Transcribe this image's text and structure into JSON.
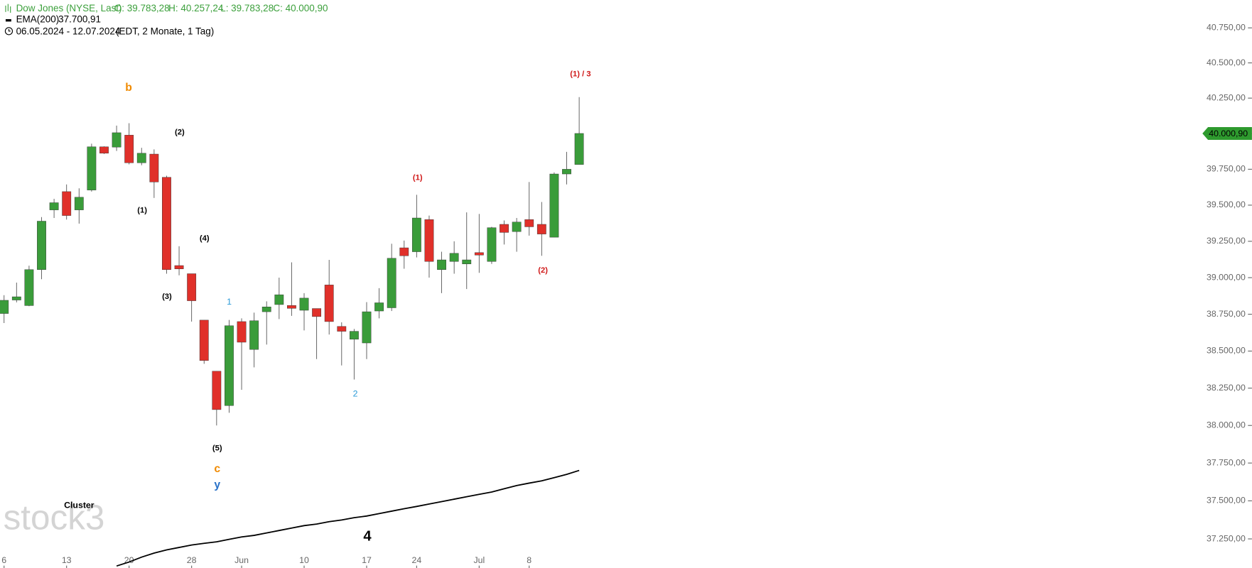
{
  "chart_data": {
    "type": "candlestick",
    "title": "Dow Jones (NYSE, Last)",
    "ohlc_labels": {
      "open": "O: 39.783,28",
      "high": "H: 40.257,24",
      "low": "L: 39.783,28",
      "close": "C: 40.000,90"
    },
    "date_range": "06.05.2024 - 12.07.2024",
    "subtitle": "(EDT, 2 Monate, 1 Tag)",
    "watermark": "stock3",
    "log_scale": true,
    "up_color": "#3a9c3a",
    "down_color": "#e0302a",
    "categories": [
      "6",
      null,
      null,
      null,
      null,
      "13",
      null,
      null,
      null,
      null,
      "20",
      null,
      null,
      null,
      null,
      "28",
      null,
      null,
      null,
      "Jun",
      null,
      null,
      null,
      null,
      "10",
      null,
      null,
      null,
      null,
      "17",
      null,
      null,
      null,
      "24",
      null,
      null,
      null,
      null,
      "Jul",
      null,
      null,
      null,
      "8",
      null,
      null,
      null,
      null
    ],
    "open": [
      38755,
      38847,
      38809,
      39055,
      39467,
      39594,
      39467,
      39605,
      39907,
      39905,
      39989,
      39795,
      39856,
      39694,
      39083,
      39027,
      38710,
      38364,
      38133,
      38700,
      38511,
      38767,
      38816,
      38810,
      38777,
      38789,
      38950,
      38667,
      38580,
      38555,
      38772,
      38794,
      39205,
      39178,
      39400,
      39055,
      39111,
      39094,
      39172,
      39111,
      39367,
      39317,
      39400,
      39367,
      39278,
      39717,
      39783.28
    ],
    "high": [
      38880,
      38966,
      39082,
      39417,
      39544,
      39644,
      39617,
      39929,
      39910,
      40056,
      40073,
      39900,
      39889,
      39705,
      39216,
      39027,
      38710,
      38364,
      38711,
      38722,
      38761,
      38838,
      39000,
      39105,
      38894,
      38789,
      39122,
      38695,
      38650,
      38833,
      38928,
      39233,
      39255,
      39572,
      39428,
      39178,
      39250,
      39450,
      39439,
      39350,
      39394,
      39411,
      39661,
      39522,
      39728,
      39872,
      40257.24
    ],
    "low": [
      38690,
      38831,
      38805,
      38989,
      39411,
      39400,
      39372,
      39594,
      39857,
      39878,
      39784,
      39778,
      39550,
      39027,
      39016,
      38700,
      38414,
      38000,
      38085,
      38239,
      38390,
      38544,
      38717,
      38739,
      38640,
      38446,
      38612,
      38403,
      38308,
      38446,
      38722,
      38772,
      39061,
      39139,
      39000,
      38894,
      39027,
      38922,
      39033,
      39094,
      39228,
      39178,
      39289,
      39150,
      39278,
      39644,
      39783.28
    ],
    "close": [
      38845,
      38869,
      39055,
      39389,
      39517,
      39428,
      39555,
      39907,
      39862,
      40006,
      39795,
      39862,
      39661,
      39055,
      39060,
      38842,
      38436,
      38106,
      38672,
      38560,
      38706,
      38800,
      38883,
      38790,
      38860,
      38734,
      38700,
      38634,
      38634,
      38767,
      38828,
      39133,
      39150,
      39411,
      39111,
      39122,
      39167,
      39122,
      39155,
      39344,
      39311,
      39383,
      39350,
      39300,
      39717,
      39750,
      40000.9
    ],
    "last_price_label": "40.000,90",
    "overlay": {
      "name": "EMA(200)",
      "color": "#000000",
      "last_label": "37.700,91",
      "values": [
        null,
        null,
        null,
        null,
        null,
        null,
        null,
        null,
        null,
        37073,
        37099,
        37131,
        37157,
        37178,
        37194,
        37210,
        37221,
        37231,
        37247,
        37263,
        37273,
        37289,
        37305,
        37321,
        37337,
        37347,
        37363,
        37374,
        37389,
        37400,
        37416,
        37432,
        37448,
        37463,
        37479,
        37495,
        37511,
        37527,
        37543,
        37558,
        37580,
        37601,
        37617,
        37632,
        37653,
        37675,
        37700.91
      ]
    },
    "ylim": [
      37060,
      40950
    ],
    "yticks": [
      {
        "value": 37250,
        "label": "37.250,00"
      },
      {
        "value": 37500,
        "label": "37.500,00"
      },
      {
        "value": 37750,
        "label": "37.750,00"
      },
      {
        "value": 38000,
        "label": "38.000,00"
      },
      {
        "value": 38250,
        "label": "38.250,00"
      },
      {
        "value": 38500,
        "label": "38.500,00"
      },
      {
        "value": 38750,
        "label": "38.750,00"
      },
      {
        "value": 39000,
        "label": "39.000,00"
      },
      {
        "value": 39250,
        "label": "39.250,00"
      },
      {
        "value": 39500,
        "label": "39.500,00"
      },
      {
        "value": 39750,
        "label": "39.750,00"
      },
      {
        "value": 40000,
        "label": "40.000,00"
      },
      {
        "value": 40250,
        "label": "40.250,00"
      },
      {
        "value": 40500,
        "label": "40.500,00"
      },
      {
        "value": 40750,
        "label": "40.750,00"
      }
    ],
    "annotations": [
      {
        "text": "b",
        "color": "#f08a00"
      },
      {
        "text": "(2)",
        "color": "#000000"
      },
      {
        "text": "(1)",
        "color": "#000000"
      },
      {
        "text": "(4)",
        "color": "#000000"
      },
      {
        "text": "(3)",
        "color": "#000000"
      },
      {
        "text": "(5)",
        "color": "#000000"
      },
      {
        "text": "c",
        "color": "#f08a00"
      },
      {
        "text": "y",
        "color": "#2a72c8"
      },
      {
        "text": "1",
        "color": "#2a9ad8"
      },
      {
        "text": "2",
        "color": "#2a9ad8"
      },
      {
        "text": "(1)",
        "color": "#d01818"
      },
      {
        "text": "(2)",
        "color": "#d01818"
      },
      {
        "text": "(1) / 3",
        "color": "#d01818"
      },
      {
        "text": "4",
        "color": "#000000"
      },
      {
        "text": "Cluster",
        "color": "#000000"
      }
    ]
  }
}
